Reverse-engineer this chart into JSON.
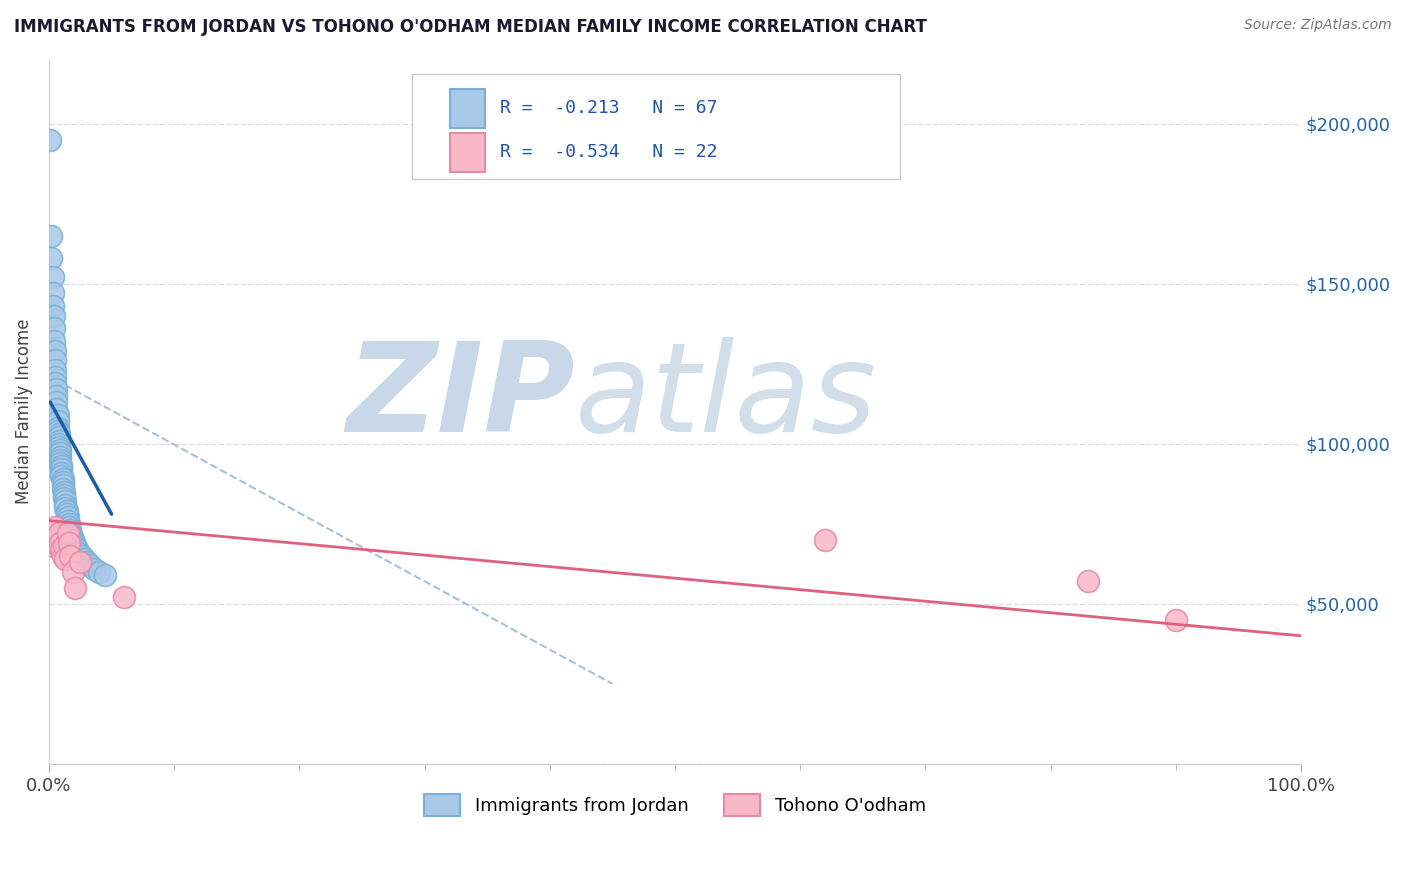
{
  "title": "IMMIGRANTS FROM JORDAN VS TOHONO O'ODHAM MEDIAN FAMILY INCOME CORRELATION CHART",
  "source_text": "Source: ZipAtlas.com",
  "ylabel": "Median Family Income",
  "watermark_zip": "ZIP",
  "watermark_atlas": "atlas",
  "xlim": [
    0.0,
    1.0
  ],
  "ylim": [
    0,
    220000
  ],
  "yticks": [
    0,
    50000,
    100000,
    150000,
    200000
  ],
  "ytick_labels": [
    "",
    "$50,000",
    "$100,000",
    "$150,000",
    "$200,000"
  ],
  "xtick_positions": [
    0.0,
    1.0
  ],
  "xtick_labels": [
    "0.0%",
    "100.0%"
  ],
  "legend_r1": "R =  -0.213   N = 67",
  "legend_r2": "R =  -0.534   N = 22",
  "blue_scatter_color": "#a8c8e8",
  "blue_edge_color": "#7ab0d8",
  "pink_scatter_color": "#f8b8c8",
  "pink_edge_color": "#e888a8",
  "blue_line_color": "#1a5fa8",
  "pink_line_color": "#e06080",
  "dashed_line_color": "#a8c0d8",
  "blue_scatter_x": [
    0.001,
    0.002,
    0.002,
    0.003,
    0.003,
    0.003,
    0.004,
    0.004,
    0.004,
    0.005,
    0.005,
    0.005,
    0.005,
    0.005,
    0.006,
    0.006,
    0.006,
    0.006,
    0.007,
    0.007,
    0.007,
    0.007,
    0.008,
    0.008,
    0.008,
    0.008,
    0.008,
    0.009,
    0.009,
    0.009,
    0.009,
    0.009,
    0.01,
    0.01,
    0.01,
    0.01,
    0.011,
    0.011,
    0.011,
    0.011,
    0.012,
    0.012,
    0.012,
    0.013,
    0.013,
    0.013,
    0.014,
    0.014,
    0.015,
    0.015,
    0.016,
    0.016,
    0.017,
    0.017,
    0.018,
    0.019,
    0.02,
    0.021,
    0.022,
    0.024,
    0.026,
    0.028,
    0.03,
    0.033,
    0.036,
    0.04,
    0.045
  ],
  "blue_scatter_y": [
    195000,
    165000,
    158000,
    152000,
    147000,
    143000,
    140000,
    136000,
    132000,
    129000,
    126000,
    123000,
    121000,
    119000,
    117000,
    115000,
    113000,
    111000,
    109000,
    107000,
    105000,
    104000,
    103000,
    102000,
    101000,
    100000,
    99000,
    98000,
    97000,
    96000,
    95000,
    94000,
    93000,
    92000,
    91000,
    90000,
    89000,
    88000,
    87000,
    86000,
    85000,
    84000,
    83000,
    82000,
    81000,
    80000,
    79000,
    78000,
    77000,
    76000,
    75000,
    74000,
    73000,
    72000,
    71000,
    70000,
    69000,
    68000,
    67000,
    66000,
    65000,
    64000,
    63000,
    62000,
    61000,
    60000,
    59000
  ],
  "pink_scatter_x": [
    0.002,
    0.003,
    0.004,
    0.005,
    0.006,
    0.007,
    0.008,
    0.009,
    0.01,
    0.011,
    0.012,
    0.013,
    0.015,
    0.016,
    0.017,
    0.019,
    0.021,
    0.025,
    0.06,
    0.62,
    0.83,
    0.9
  ],
  "pink_scatter_y": [
    70000,
    72000,
    68000,
    74000,
    71000,
    68000,
    72000,
    69000,
    67000,
    65000,
    68000,
    64000,
    72000,
    69000,
    65000,
    60000,
    55000,
    63000,
    52000,
    70000,
    57000,
    45000
  ],
  "blue_trend_x": [
    0.001,
    0.05
  ],
  "blue_trend_y": [
    113000,
    78000
  ],
  "pink_trend_x": [
    0.0,
    1.0
  ],
  "pink_trend_y": [
    76000,
    40000
  ],
  "dashed_trend_x": [
    0.005,
    0.45
  ],
  "dashed_trend_y": [
    120000,
    25000
  ],
  "legend_label_blue": "Immigrants from Jordan",
  "legend_label_pink": "Tohono O'odham",
  "title_color": "#1a1a2e",
  "source_color": "#777777",
  "axis_color": "#cccccc",
  "grid_color": "#dddddd",
  "watermark_color_zip": "#c8d8e8",
  "watermark_color_atlas": "#c0d0e0"
}
